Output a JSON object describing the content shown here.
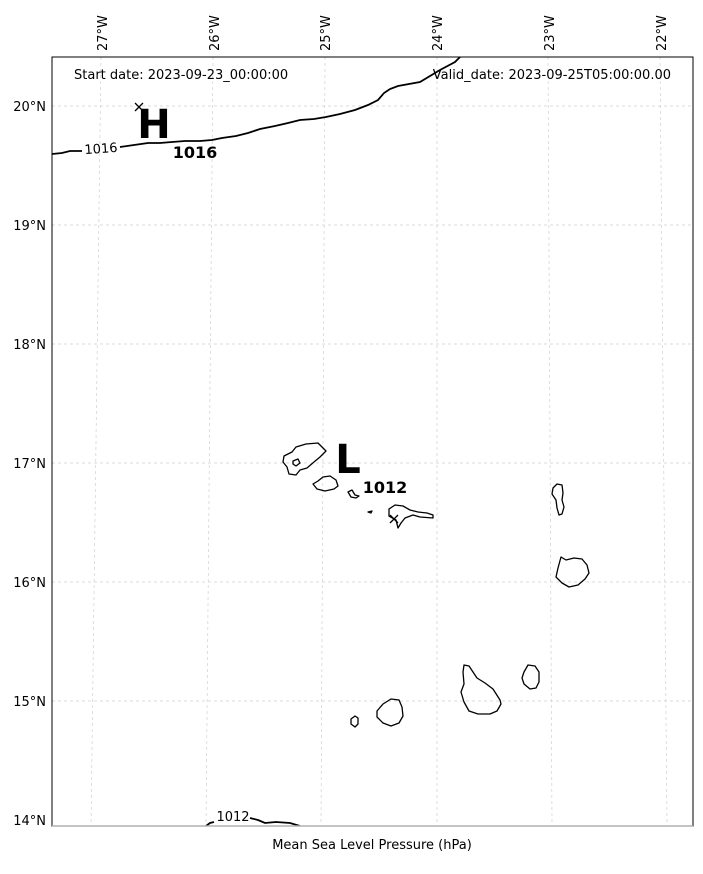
{
  "header": {
    "start_date": "Start date: 2023-09-23_00:00:00",
    "valid_date": "Valid_date: 2023-09-25T05:00:00.00"
  },
  "axes": {
    "lon_labels": [
      "27°W",
      "26°W",
      "25°W",
      "24°W",
      "23°W",
      "22°W"
    ],
    "lat_labels": [
      "20°N",
      "19°N",
      "18°N",
      "17°N",
      "16°N",
      "15°N",
      "14°N"
    ],
    "xlabel": "Mean Sea Level Pressure (hPa)",
    "grid": true,
    "lon_range": [
      -27.35,
      -21.8
    ],
    "lat_range": [
      13.95,
      20.4
    ]
  },
  "pressure_centers": {
    "high": {
      "letter": "H",
      "value": "1016",
      "lon": -26.45,
      "lat": 19.99
    },
    "low": {
      "letter": "L",
      "value": "1012",
      "lon": -24.35,
      "lat": 16.52
    }
  },
  "isobars": {
    "north_label": "1016",
    "south_label": "1012"
  },
  "colors": {
    "background": "#ffffff",
    "coastline": "#000000",
    "grid": "#d0d0d0",
    "frame": "#000000"
  }
}
